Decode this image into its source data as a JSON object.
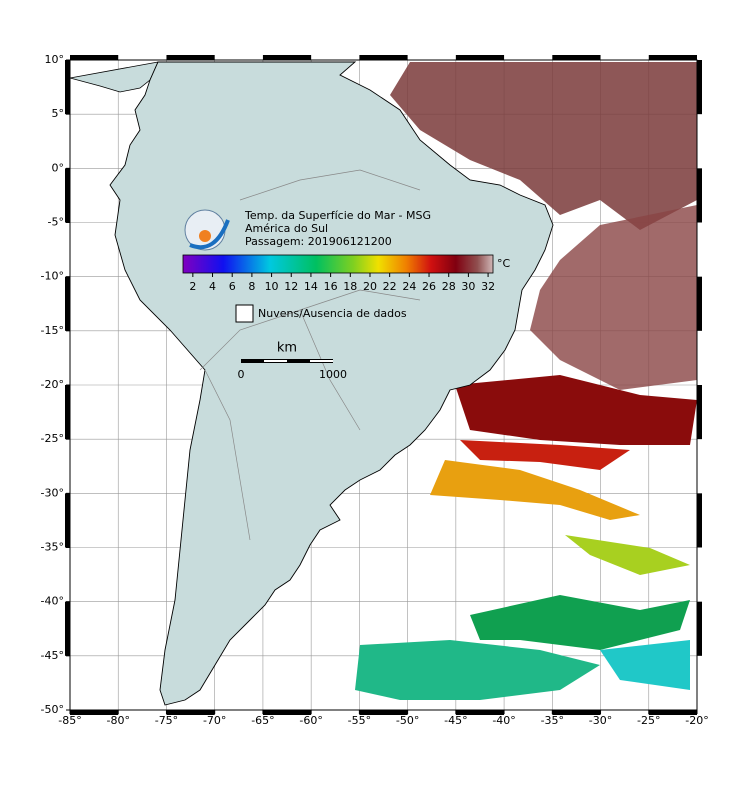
{
  "title": {
    "line1": "Temp. da Superfície do Mar - MSG",
    "line2": "América do Sul",
    "line3": "Passagem: 201906121200"
  },
  "colorbar": {
    "unit": "°C",
    "range": [
      1,
      32.5
    ],
    "ticks": [
      2,
      4,
      6,
      8,
      10,
      12,
      14,
      16,
      18,
      20,
      22,
      24,
      26,
      28,
      30,
      32
    ]
  },
  "legend": {
    "label": "Nuvens/Ausencia de dados"
  },
  "scale_bar": {
    "unit": "km",
    "start": "0",
    "end": "1000"
  },
  "map": {
    "lonlim": [
      -85,
      -20
    ],
    "latlim": [
      -50,
      10
    ],
    "lon_ticks": [
      {
        "value": -85,
        "label": "-85°"
      },
      {
        "value": -80,
        "label": "-80°"
      },
      {
        "value": -75,
        "label": "-75°"
      },
      {
        "value": -70,
        "label": "-70°"
      },
      {
        "value": -65,
        "label": "-65°"
      },
      {
        "value": -60,
        "label": "-60°"
      },
      {
        "value": -55,
        "label": "-55°"
      },
      {
        "value": -50,
        "label": "-50°"
      },
      {
        "value": -45,
        "label": "-45°"
      },
      {
        "value": -40,
        "label": "-40°"
      },
      {
        "value": -35,
        "label": "-35°"
      },
      {
        "value": -30,
        "label": "-30°"
      },
      {
        "value": -25,
        "label": "-25°"
      },
      {
        "value": -20,
        "label": "-20°"
      }
    ],
    "lat_ticks": [
      {
        "value": 10,
        "label": "10°"
      },
      {
        "value": 5,
        "label": "5°"
      },
      {
        "value": 0,
        "label": "0°"
      },
      {
        "value": -5,
        "label": "-5°"
      },
      {
        "value": -10,
        "label": "-10°"
      },
      {
        "value": -15,
        "label": "-15°"
      },
      {
        "value": -20,
        "label": "-20°"
      },
      {
        "value": -25,
        "label": "-25°"
      },
      {
        "value": -30,
        "label": "-30°"
      },
      {
        "value": -35,
        "label": "-35°"
      },
      {
        "value": -40,
        "label": "-40°"
      },
      {
        "value": -45,
        "label": "-45°"
      },
      {
        "value": -50,
        "label": "-50°"
      }
    ]
  }
}
